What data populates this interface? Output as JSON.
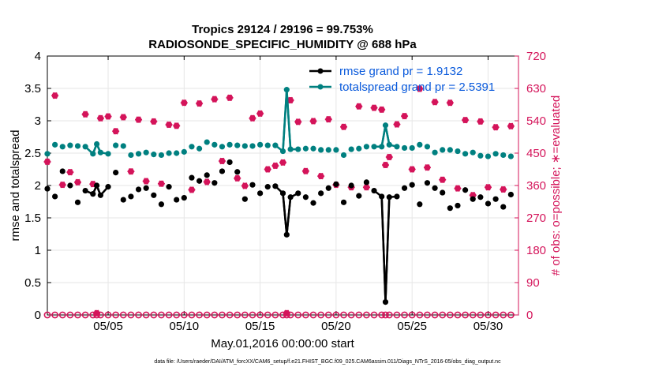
{
  "chart_data": {
    "type": "line",
    "title_line1": "Tropics 29124 / 29196 = 99.753%",
    "title_line2": "RADIOSONDE_SPECIFIC_HUMIDITY @ 688 hPa",
    "xlabel": "May.01,2016 00:00:00 start",
    "ylabel_left": "rmse and totalspread",
    "ylabel_right": "# of obs: o=possible; ∗=evaluated",
    "footnote": "data file: /Users/raeder/DAI/ATM_forcXX/CAM6_setup/f.e21.FHIST_BGC.f09_025.CAM6assim.011/Diags_NTrS_2016-05/obs_diag_output.nc",
    "xlim": [
      1,
      32
    ],
    "ylim_left": [
      0,
      4
    ],
    "ylim_right": [
      0,
      720
    ],
    "x_ticks": [
      5,
      10,
      15,
      20,
      25,
      30
    ],
    "x_tick_labels": [
      "05/05",
      "05/10",
      "05/15",
      "05/20",
      "05/25",
      "05/30"
    ],
    "y_left_ticks": [
      0,
      0.5,
      1,
      1.5,
      2,
      2.5,
      3,
      3.5,
      4
    ],
    "y_left_tick_labels": [
      "0",
      "0.5",
      "1",
      "1.5",
      "2",
      "2.5",
      "3",
      "3.5",
      "4"
    ],
    "y_right_ticks": [
      0,
      90,
      180,
      270,
      360,
      450,
      540,
      630,
      720
    ],
    "y_right_tick_labels": [
      "0",
      "90",
      "180",
      "270",
      "360",
      "450",
      "540",
      "630",
      "720"
    ],
    "grid": true,
    "legend_position": "top-right",
    "colors": {
      "rmse": "#000000",
      "spread": "#008080",
      "obs": "#d4145a",
      "legend_text": "#0a5adc"
    },
    "x": [
      1.0,
      1.5,
      2.0,
      2.5,
      3.0,
      3.5,
      4.0,
      4.25,
      4.5,
      5.0,
      5.5,
      6.0,
      6.5,
      7.0,
      7.5,
      8.0,
      8.5,
      9.0,
      9.5,
      10.0,
      10.5,
      11.0,
      11.5,
      12.0,
      12.5,
      13.0,
      13.5,
      14.0,
      14.5,
      15.0,
      15.5,
      16.0,
      16.5,
      16.75,
      17.0,
      17.5,
      18.0,
      18.5,
      19.0,
      19.5,
      20.0,
      20.5,
      21.0,
      21.5,
      22.0,
      22.5,
      23.0,
      23.25,
      23.5,
      24.0,
      24.5,
      25.0,
      25.5,
      26.0,
      26.5,
      27.0,
      27.5,
      28.0,
      28.5,
      29.0,
      29.5,
      30.0,
      30.5,
      31.0,
      31.5
    ],
    "series": [
      {
        "name": "rmse",
        "legend_label": "rmse grand pr = 1.9132",
        "values": [
          1.95,
          1.83,
          2.22,
          2.0,
          1.74,
          1.92,
          1.87,
          2.0,
          1.85,
          1.98,
          2.2,
          1.78,
          1.83,
          1.94,
          1.96,
          1.85,
          1.71,
          1.98,
          1.78,
          1.81,
          2.12,
          2.07,
          2.16,
          2.04,
          2.22,
          2.36,
          2.21,
          1.79,
          2.01,
          1.88,
          1.98,
          1.99,
          1.88,
          1.24,
          1.82,
          1.88,
          1.82,
          1.73,
          1.88,
          1.96,
          2.02,
          1.74,
          2.0,
          1.84,
          2.05,
          1.92,
          1.83,
          0.2,
          1.82,
          1.83,
          1.96,
          2.01,
          1.71,
          2.04,
          1.96,
          1.89,
          1.65,
          1.69,
          1.93,
          1.79,
          1.82,
          1.72,
          1.79,
          1.67,
          1.86
        ]
      },
      {
        "name": "totalspread",
        "legend_label": "totalspread grand pr = 2.5391",
        "values": [
          2.49,
          2.63,
          2.6,
          2.62,
          2.61,
          2.6,
          2.49,
          2.64,
          2.51,
          2.49,
          2.62,
          2.61,
          2.47,
          2.49,
          2.51,
          2.48,
          2.47,
          2.5,
          2.5,
          2.52,
          2.6,
          2.57,
          2.67,
          2.63,
          2.6,
          2.63,
          2.62,
          2.61,
          2.61,
          2.63,
          2.62,
          2.62,
          2.53,
          3.48,
          2.56,
          2.56,
          2.57,
          2.57,
          2.55,
          2.55,
          2.55,
          2.47,
          2.56,
          2.57,
          2.6,
          2.6,
          2.6,
          2.93,
          2.63,
          2.6,
          2.58,
          2.58,
          2.63,
          2.6,
          2.51,
          2.55,
          2.55,
          2.53,
          2.49,
          2.51,
          2.46,
          2.45,
          2.49,
          2.47,
          2.45
        ]
      },
      {
        "name": "obs_possible",
        "values": [
          0,
          0,
          0,
          0,
          0,
          0,
          0,
          0,
          0,
          0,
          0,
          0,
          0,
          0,
          0,
          0,
          0,
          0,
          0,
          0,
          0,
          0,
          0,
          0,
          0,
          0,
          0,
          0,
          0,
          0,
          0,
          0,
          0,
          0,
          0,
          0,
          0,
          0,
          0,
          0,
          0,
          0,
          0,
          0,
          0,
          0,
          0,
          0,
          0,
          0,
          0,
          0,
          0,
          0,
          0,
          0,
          0,
          0,
          0,
          0,
          0,
          0,
          0,
          0,
          0
        ]
      },
      {
        "name": "obs_evaluated",
        "values": [
          426,
          610,
          362,
          397,
          369,
          558,
          364,
          5,
          547,
          552,
          511,
          550,
          399,
          543,
          372,
          538,
          365,
          529,
          526,
          590,
          348,
          588,
          370,
          600,
          428,
          604,
          380,
          359,
          547,
          560,
          405,
          415,
          424,
          5,
          597,
          537,
          400,
          539,
          386,
          544,
          362,
          523,
          355,
          580,
          355,
          576,
          571,
          417,
          439,
          530,
          553,
          405,
          629,
          410,
          592,
          376,
          590,
          352,
          542,
          333,
          538,
          355,
          522,
          349,
          525
        ]
      }
    ]
  }
}
